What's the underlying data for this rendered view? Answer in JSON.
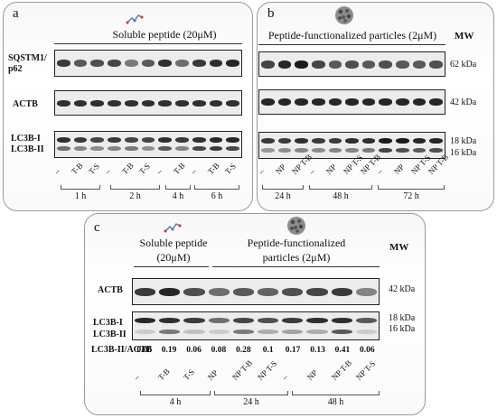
{
  "panels": {
    "a": {
      "label": "a",
      "header": "Soluble peptide (20μM)",
      "rows": [
        "SQSTM1/ p62",
        "ACTB",
        "LC3B-I",
        "LC3B-II"
      ],
      "lanes": [
        "–",
        "T-B",
        "T-S",
        "–",
        "T-B",
        "T-S",
        "–",
        "T-B",
        "–",
        "T-B",
        "T-S"
      ],
      "times": [
        "1 h",
        "2 h",
        "4 h",
        "6 h"
      ]
    },
    "b": {
      "label": "b",
      "header": "Peptide-functionalized particles (2μM)",
      "mw_title": "MW",
      "markers": [
        "62 kDa",
        "42 kDa",
        "18 kDa",
        "16 kDa"
      ],
      "lanes": [
        "–",
        "NP",
        "NP T-B",
        "–",
        "NP",
        "NP T-S",
        "NP T-B",
        "–",
        "NP",
        "NP T-S",
        "NP T-B"
      ],
      "times": [
        "24 h",
        "48 h",
        "72 h"
      ]
    },
    "c": {
      "label": "c",
      "header_left_1": "Soluble peptide",
      "header_left_2": "(20μM)",
      "header_right_1": "Peptide-functionalized",
      "header_right_2": "particles (2μM)",
      "mw_title": "MW",
      "rows": [
        "ACTB",
        "LC3B-I",
        "LC3B-II",
        "LC3B-II/ACTB"
      ],
      "markers": [
        "42 kDa",
        "18 kDa",
        "16 kDa"
      ],
      "ratios": [
        "0.06",
        "0.19",
        "0.06",
        "0.08",
        "0.28",
        "0.1",
        "0.17",
        "0.13",
        "0.41",
        "0.06"
      ],
      "lanes": [
        "–",
        "T-B",
        "T-S",
        "NP",
        "NP T-B",
        "NP T-S",
        "–",
        "NP",
        "NP T-B",
        "NP T-S"
      ],
      "times": [
        "4 h",
        "24 h",
        "48 h"
      ]
    }
  },
  "icons": {
    "peptide": "peptide-molecule-icon",
    "particle": "nanoparticle-icon"
  }
}
